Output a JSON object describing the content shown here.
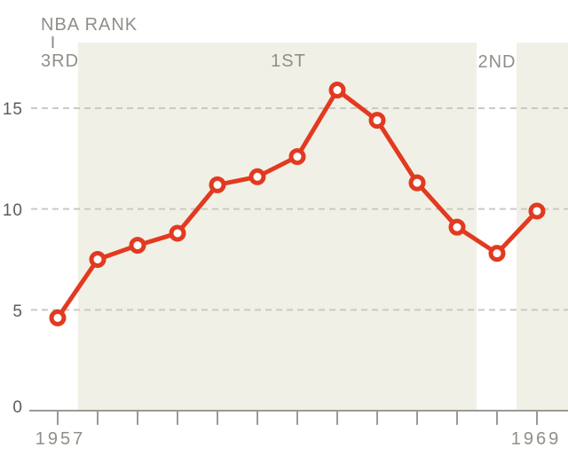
{
  "chart_data": {
    "type": "line",
    "title": "NBA RANK",
    "xlabel": "",
    "ylabel": "",
    "x": [
      1957,
      1958,
      1959,
      1960,
      1961,
      1962,
      1963,
      1964,
      1965,
      1966,
      1967,
      1968,
      1969
    ],
    "series": [
      {
        "name": "value-by-season",
        "values": [
          4.6,
          7.5,
          8.2,
          8.8,
          11.2,
          11.6,
          12.6,
          15.9,
          14.4,
          11.3,
          9.1,
          7.8,
          9.9
        ]
      }
    ],
    "ylim": [
      0,
      18.3
    ],
    "yticks": [
      0,
      5,
      10,
      15
    ],
    "xtick_labels_shown": [
      "1957",
      "1969"
    ],
    "grid": "dashed-horizontal",
    "legend": "none",
    "annotations": [
      {
        "label": "3RD",
        "year": 1957.0
      },
      {
        "label": "1ST",
        "year": 1962.8
      },
      {
        "label": "2ND",
        "year": 1968.0
      }
    ],
    "bands": [
      {
        "from_year": 1957.51,
        "to_year": 1967.49
      },
      {
        "from_year": 1968.49,
        "to_year": 1969.78
      }
    ],
    "colors": {
      "line": "#e23a20",
      "marker_fill": "#ffffff",
      "band": "#f1f0e6",
      "grid": "#c9c9c3",
      "axis": "#9a9a94",
      "ytick_text": "#5d5d57",
      "xtick_text": "#8f8f89",
      "annotation_text": "#8f8f89"
    }
  }
}
